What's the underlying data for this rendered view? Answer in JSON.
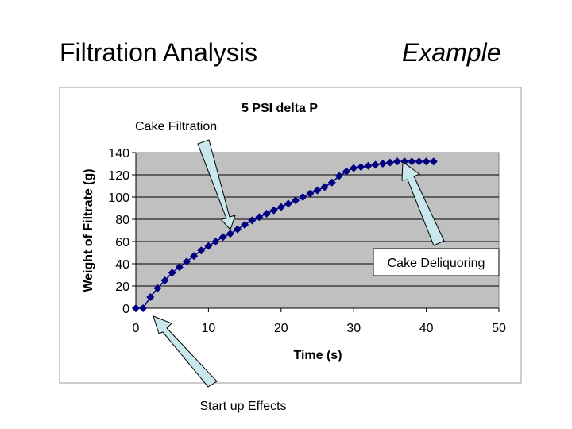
{
  "slide": {
    "title": "Filtration Analysis",
    "tag": "Example"
  },
  "colors": {
    "plot_bg": "#c0c0c0",
    "series": "#000080",
    "arrow_fill": "#c8e8ee"
  },
  "annotations": {
    "cake_filtration": "Cake Filtration",
    "cake_deliquoring": "Cake Deliquoring",
    "startup_effects": "Start up Effects"
  },
  "chart_data": {
    "type": "scatter",
    "title": "5 PSI delta P",
    "xlabel": "Time (s)",
    "ylabel": "Weight of Filtrate (g)",
    "xlim": [
      0,
      50
    ],
    "ylim": [
      0,
      140
    ],
    "xticks": [
      0,
      10,
      20,
      30,
      40,
      50
    ],
    "yticks": [
      0,
      20,
      40,
      60,
      80,
      100,
      120,
      140
    ],
    "grid": "horizontal",
    "legend": "none",
    "series": [
      {
        "x": [
          0,
          1,
          2,
          3,
          4,
          5,
          6,
          7,
          8,
          9,
          10,
          11,
          12,
          13,
          14,
          15,
          16,
          17,
          18,
          19,
          20,
          21,
          22,
          23,
          24,
          25,
          26,
          27,
          28,
          29,
          30,
          31,
          32,
          33,
          34,
          35,
          36,
          37,
          38,
          39,
          40,
          41
        ],
        "y": [
          0,
          0,
          10,
          18,
          25,
          32,
          37,
          42,
          47,
          52,
          56,
          60,
          64,
          67,
          71,
          75,
          79,
          82,
          85,
          88,
          91,
          94,
          97,
          100,
          103,
          106,
          109,
          113,
          119,
          123,
          126,
          127,
          128,
          129,
          130,
          131,
          132,
          132,
          132,
          132,
          132,
          132
        ]
      }
    ]
  }
}
